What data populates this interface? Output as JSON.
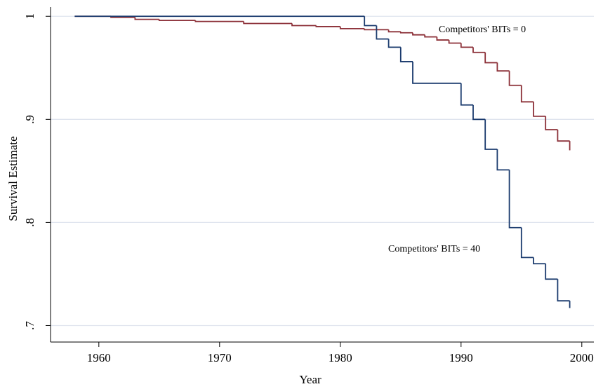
{
  "chart_data": {
    "type": "step",
    "x_label": "Year",
    "y_label": "Survival Estimate",
    "xlim": [
      1956,
      2001
    ],
    "ylim": [
      0.684,
      1.009
    ],
    "xticks": [
      1960,
      1970,
      1980,
      1990,
      2000
    ],
    "yticks": [
      {
        "value": 0.7,
        "label": ".7"
      },
      {
        "value": 0.8,
        "label": ".8"
      },
      {
        "value": 0.9,
        "label": ".9"
      },
      1
    ],
    "grid": true,
    "series": [
      {
        "name": "Competitors' BITs = 0",
        "color": "#8c3038",
        "x": [
          1958,
          1961,
          1963,
          1965,
          1968,
          1972,
          1976,
          1978,
          1980,
          1982,
          1984,
          1985,
          1986,
          1987,
          1988,
          1989,
          1990,
          1991,
          1992,
          1993,
          1994,
          1995,
          1996,
          1997,
          1998,
          1999
        ],
        "values": [
          1,
          0.999,
          0.997,
          0.996,
          0.995,
          0.993,
          0.991,
          0.99,
          0.988,
          0.987,
          0.985,
          0.984,
          0.982,
          0.98,
          0.977,
          0.974,
          0.97,
          0.965,
          0.955,
          0.947,
          0.933,
          0.917,
          0.903,
          0.89,
          0.879,
          0.87
        ]
      },
      {
        "name": "Competitors' BITs = 40",
        "color": "#1b3b6e",
        "x": [
          1958,
          1982,
          1983,
          1984,
          1985,
          1986,
          1990,
          1991,
          1992,
          1993,
          1994,
          1995,
          1996,
          1997,
          1998,
          1999
        ],
        "values": [
          1,
          0.991,
          0.978,
          0.97,
          0.956,
          0.935,
          0.914,
          0.9,
          0.871,
          0.851,
          0.795,
          0.766,
          0.76,
          0.745,
          0.724,
          0.717
        ]
      }
    ]
  }
}
